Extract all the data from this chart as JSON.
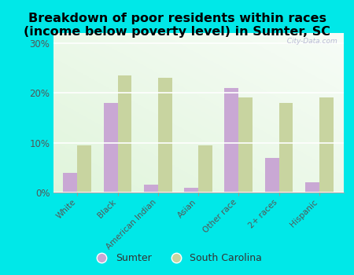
{
  "title": "Breakdown of poor residents within races\n(income below poverty level) in Sumter, SC",
  "categories": [
    "White",
    "Black",
    "American Indian",
    "Asian",
    "Other race",
    "2+ races",
    "Hispanic"
  ],
  "sumter": [
    4,
    18,
    1.5,
    1,
    21,
    7,
    2
  ],
  "south_carolina": [
    9.5,
    23.5,
    23,
    9.5,
    19,
    18,
    19
  ],
  "sumter_color": "#c9a8d4",
  "sc_color": "#c8d4a0",
  "bar_width": 0.35,
  "ylim": [
    0,
    32
  ],
  "yticks": [
    0,
    10,
    20,
    30
  ],
  "ytick_labels": [
    "0%",
    "10%",
    "20%",
    "30%"
  ],
  "background_color": "#00e8e8",
  "plot_bg": "#e8f5e2",
  "title_fontsize": 11.5,
  "watermark": "  City-Data.com",
  "legend_sumter": "Sumter",
  "legend_sc": "South Carolina"
}
